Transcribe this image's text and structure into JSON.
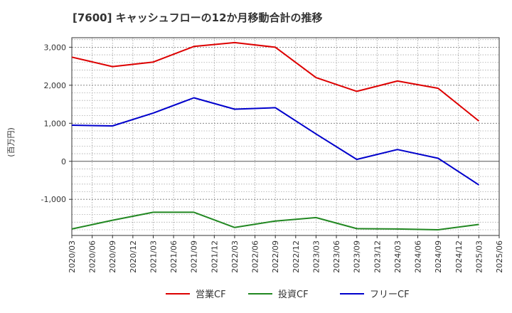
{
  "chart_data": {
    "type": "line",
    "title": "[7600]  キャッシュフローの12か月移動合計の推移",
    "ylabel": "(百万円)",
    "xlabel": "",
    "ylim": [
      -1950,
      3250
    ],
    "yticks": [
      3000,
      2000,
      1000,
      0,
      -1000
    ],
    "ytick_labels": [
      "3,000",
      "2,000",
      "1,000",
      "0",
      "-1,000"
    ],
    "x_ticks": [
      "2020/03",
      "2020/06",
      "2020/09",
      "2020/12",
      "2021/03",
      "2021/06",
      "2021/09",
      "2021/12",
      "2022/03",
      "2022/06",
      "2022/09",
      "2022/12",
      "2023/03",
      "2023/06",
      "2023/09",
      "2023/12",
      "2024/03",
      "2024/06",
      "2024/09",
      "2024/12",
      "2025/03",
      "2025/06"
    ],
    "grid": true,
    "legend_position": "bottom",
    "series": [
      {
        "name": "営業CF",
        "color": "#dd0000",
        "x": [
          "2020/03",
          "2020/09",
          "2021/03",
          "2021/09",
          "2022/03",
          "2022/09",
          "2023/03",
          "2023/09",
          "2024/03",
          "2024/09",
          "2025/03"
        ],
        "values": [
          2740,
          2490,
          2610,
          3020,
          3120,
          3000,
          2200,
          1840,
          2110,
          1920,
          1060
        ]
      },
      {
        "name": "投資CF",
        "color": "#228822",
        "x": [
          "2020/03",
          "2020/09",
          "2021/03",
          "2021/09",
          "2022/03",
          "2022/09",
          "2023/03",
          "2023/09",
          "2024/03",
          "2024/09",
          "2025/03"
        ],
        "values": [
          -1780,
          -1550,
          -1340,
          -1340,
          -1740,
          -1570,
          -1480,
          -1770,
          -1780,
          -1800,
          -1660
        ]
      },
      {
        "name": "フリーCF",
        "color": "#0000cc",
        "x": [
          "2020/03",
          "2020/09",
          "2021/03",
          "2021/09",
          "2022/03",
          "2022/09",
          "2023/03",
          "2023/09",
          "2024/03",
          "2024/09",
          "2025/03"
        ],
        "values": [
          950,
          930,
          1270,
          1670,
          1370,
          1410,
          720,
          50,
          310,
          80,
          -620
        ]
      }
    ]
  }
}
